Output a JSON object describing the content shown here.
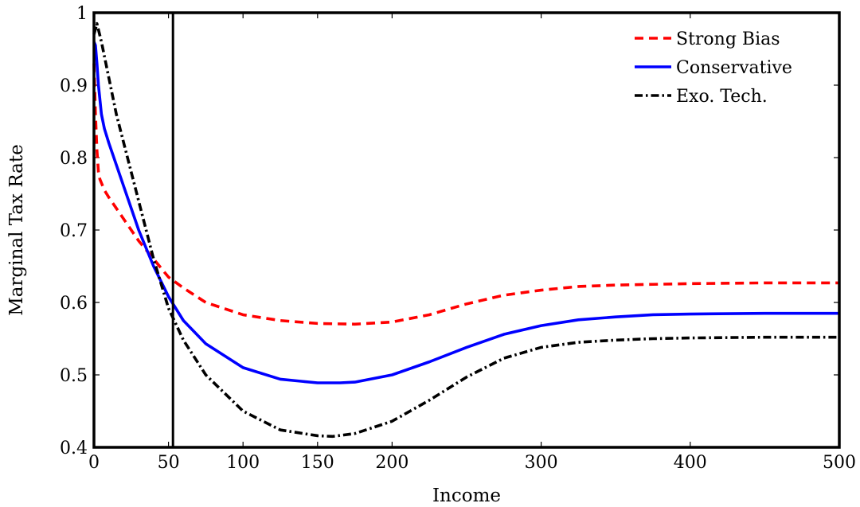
{
  "chart_data": {
    "type": "line",
    "title": "",
    "xlabel": "Income",
    "ylabel": "Marginal Tax Rate",
    "xlim": [
      0,
      500
    ],
    "ylim": [
      0.4,
      1.0
    ],
    "x_ticks": [
      0,
      50,
      100,
      150,
      200,
      300,
      400,
      500
    ],
    "x_tick_labels": [
      "0",
      "50",
      "100",
      "150",
      "200",
      "300",
      "400",
      "500"
    ],
    "y_ticks": [
      0.4,
      0.5,
      0.6,
      0.7,
      0.8,
      0.9,
      1.0
    ],
    "y_tick_labels": [
      "0.4",
      "0.5",
      "0.6",
      "0.7",
      "0.8",
      "0.9",
      "1"
    ],
    "grid": false,
    "legend_position": "top-right",
    "vertical_line_x": 53,
    "series": [
      {
        "name": "Strong Bias",
        "color": "#ff0000",
        "style": "dashed",
        "x": [
          0,
          1,
          2,
          3,
          4,
          5,
          7,
          10,
          15,
          20,
          30,
          40,
          50,
          60,
          75,
          100,
          125,
          150,
          175,
          200,
          225,
          250,
          275,
          300,
          325,
          350,
          375,
          400,
          450,
          500
        ],
        "y": [
          0.93,
          0.86,
          0.81,
          0.78,
          0.77,
          0.765,
          0.755,
          0.745,
          0.73,
          0.715,
          0.685,
          0.66,
          0.635,
          0.62,
          0.6,
          0.583,
          0.575,
          0.571,
          0.57,
          0.573,
          0.583,
          0.598,
          0.61,
          0.617,
          0.622,
          0.624,
          0.625,
          0.626,
          0.627,
          0.627
        ]
      },
      {
        "name": "Conservative",
        "color": "#0000ff",
        "style": "solid",
        "x": [
          0,
          1,
          2,
          3,
          5,
          7,
          10,
          15,
          20,
          30,
          40,
          50,
          60,
          75,
          100,
          125,
          150,
          165,
          175,
          200,
          225,
          250,
          275,
          300,
          325,
          350,
          375,
          400,
          450,
          500
        ],
        "y": [
          0.96,
          0.955,
          0.93,
          0.9,
          0.86,
          0.84,
          0.82,
          0.79,
          0.76,
          0.7,
          0.65,
          0.608,
          0.575,
          0.543,
          0.51,
          0.494,
          0.489,
          0.489,
          0.49,
          0.5,
          0.518,
          0.538,
          0.556,
          0.568,
          0.576,
          0.58,
          0.583,
          0.584,
          0.585,
          0.585
        ]
      },
      {
        "name": "Exo. Tech.",
        "color": "#000000",
        "style": "dashdot",
        "x": [
          0,
          2,
          5,
          10,
          15,
          20,
          30,
          40,
          50,
          60,
          75,
          100,
          125,
          150,
          160,
          175,
          200,
          225,
          250,
          275,
          300,
          325,
          350,
          375,
          400,
          450,
          500
        ],
        "y": [
          0.97,
          0.985,
          0.96,
          0.91,
          0.86,
          0.82,
          0.74,
          0.66,
          0.592,
          0.548,
          0.5,
          0.45,
          0.424,
          0.416,
          0.415,
          0.419,
          0.436,
          0.465,
          0.497,
          0.523,
          0.538,
          0.545,
          0.548,
          0.55,
          0.551,
          0.552,
          0.552
        ]
      }
    ]
  }
}
